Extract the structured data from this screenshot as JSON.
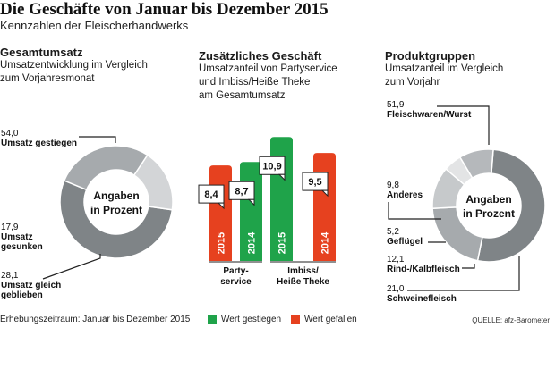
{
  "header": {
    "title": "Die Geschäfte von Januar bis Dezember 2015",
    "subtitle": "Kennzahlen der Fleischerhandwerks"
  },
  "sections": {
    "left": {
      "title": "Gesamtumsatz",
      "sub1": "Umsatzentwicklung im Vergleich",
      "sub2": "zum Vorjahresmonat"
    },
    "middle": {
      "title": "Zusätzliches Geschäft",
      "sub1": "Umsatzanteil von Partyservice",
      "sub2": "und Imbiss/Heiße Theke",
      "sub3": "am Gesamtumsatz"
    },
    "right": {
      "title": "Produktgruppen",
      "sub1": "Umsatzanteil im Vergleich",
      "sub2": "zum Vorjahr"
    }
  },
  "colors": {
    "dark_gray": "#7f8487",
    "mid_gray": "#a6aaad",
    "light_gray": "#d3d5d7",
    "lighter_gray": "#e3e4e5",
    "green": "#1fa34a",
    "red": "#e6411f"
  },
  "chart_data": [
    {
      "type": "pie",
      "name": "Gesamtumsatz",
      "center_label": [
        "Angaben",
        "in Prozent"
      ],
      "slices": [
        {
          "value_label": "54,0",
          "value": 54.0,
          "label": [
            "Umsatz gestiegen"
          ],
          "color": "#7f8487"
        },
        {
          "value_label": "28,1",
          "value": 28.1,
          "label": [
            "Umsatz gleich",
            "geblieben"
          ],
          "color": "#a6aaad"
        },
        {
          "value_label": "17,9",
          "value": 17.9,
          "label": [
            "Umsatz",
            "gesunken"
          ],
          "color": "#d3d5d7"
        }
      ]
    },
    {
      "type": "bar",
      "name": "Zusätzliches Geschäft",
      "groups": [
        {
          "name": [
            "Party-",
            "service"
          ],
          "bars": [
            {
              "year": "2015",
              "value": 8.4,
              "value_label": "8,4",
              "color": "#e6411f"
            },
            {
              "year": "2014",
              "value": 8.7,
              "value_label": "8,7",
              "color": "#1fa34a"
            }
          ]
        },
        {
          "name": [
            "Imbiss/",
            "Heiße Theke"
          ],
          "bars": [
            {
              "year": "2015",
              "value": 10.9,
              "value_label": "10,9",
              "color": "#1fa34a"
            },
            {
              "year": "2014",
              "value": 9.5,
              "value_label": "9,5",
              "color": "#e6411f"
            }
          ]
        }
      ],
      "ylim": [
        0,
        11
      ]
    },
    {
      "type": "pie",
      "name": "Produktgruppen",
      "center_label": [
        "Angaben",
        "in Prozent"
      ],
      "slices": [
        {
          "value_label": "51,9",
          "value": 51.9,
          "label": [
            "Fleischwaren/Wurst"
          ],
          "color": "#7f8487"
        },
        {
          "value_label": "21,0",
          "value": 21.0,
          "label": [
            "Schweinefleisch"
          ],
          "color": "#a6aaad"
        },
        {
          "value_label": "12,1",
          "value": 12.1,
          "label": [
            "Rind-/Kalbfleisch"
          ],
          "color": "#c6c9cb"
        },
        {
          "value_label": "5,2",
          "value": 5.2,
          "label": [
            "Geflügel"
          ],
          "color": "#e3e4e5"
        },
        {
          "value_label": "9,8",
          "value": 9.8,
          "label": [
            "Anderes"
          ],
          "color": "#b5b8bb"
        }
      ]
    }
  ],
  "footer": {
    "period": "Erhebungszeitraum: Januar bis Dezember 2015",
    "legend_up": "Wert gestiegen",
    "legend_down": "Wert gefallen",
    "source": "QUELLE: afz-Barometer"
  }
}
